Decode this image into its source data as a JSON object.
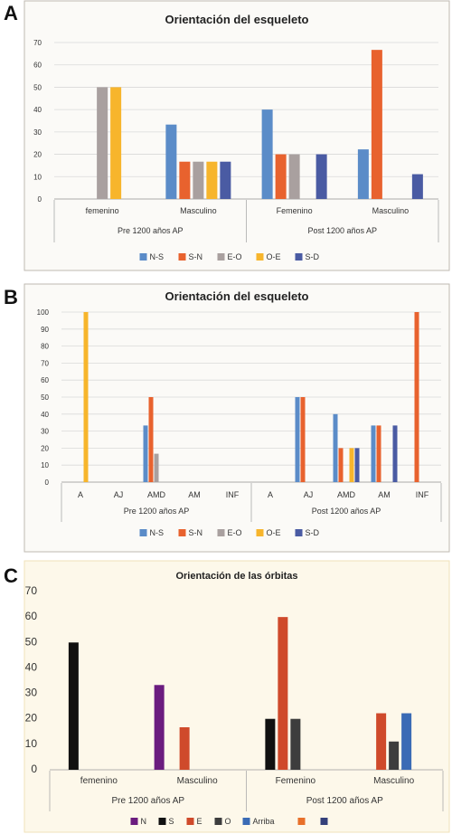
{
  "panels": [
    {
      "letter": "A"
    },
    {
      "letter": "B"
    },
    {
      "letter": "C"
    }
  ],
  "colors": {
    "N-S": "#5b8cc8",
    "S-N": "#e8622e",
    "E-O": "#a9a09f",
    "O-E": "#f7b52c",
    "S-D": "#4a5ba3",
    "N": "#6b1c7f",
    "S": "#111111",
    "E": "#cf4a2b",
    "O": "#3d3d3d",
    "Arriba": "#3a6bb5",
    "extra1": "#e8702a",
    "extra2": "#34407a"
  },
  "chart_data": [
    {
      "type": "bar",
      "title": "Orientación del esqueleto",
      "ylim": [
        0,
        70
      ],
      "yticks": [
        "0",
        "10",
        "20",
        "30",
        "40",
        "50",
        "60",
        "70"
      ],
      "categories": [
        "femenino",
        "Masculino",
        "Femenino",
        "Masculino"
      ],
      "groups": [
        "Pre 1200 años AP",
        "Post 1200 años AP"
      ],
      "series": [
        {
          "name": "N-S",
          "values": [
            0,
            33.3,
            40,
            22.2
          ]
        },
        {
          "name": "S-N",
          "values": [
            0,
            16.7,
            20,
            66.7
          ]
        },
        {
          "name": "E-O",
          "values": [
            50,
            16.7,
            20,
            0
          ]
        },
        {
          "name": "O-E",
          "values": [
            50,
            16.7,
            0,
            0
          ]
        },
        {
          "name": "S-D",
          "values": [
            0,
            16.7,
            20,
            11.1
          ]
        }
      ],
      "legend": "bottom"
    },
    {
      "type": "bar",
      "title": "Orientación del esqueleto",
      "ylim": [
        0,
        100
      ],
      "yticks": [
        "0",
        "10",
        "20",
        "30",
        "40",
        "50",
        "60",
        "70",
        "80",
        "90",
        "100"
      ],
      "categories": [
        "A",
        "AJ",
        "AMD",
        "AM",
        "INF",
        "A",
        "AJ",
        "AMD",
        "AM",
        "INF"
      ],
      "groups": [
        "Pre 1200 años AP",
        "Post 1200 años AP"
      ],
      "series": [
        {
          "name": "N-S",
          "values": [
            0,
            0,
            33.3,
            0,
            0,
            0,
            50,
            40,
            33.3,
            0
          ]
        },
        {
          "name": "S-N",
          "values": [
            0,
            0,
            50,
            0,
            0,
            0,
            50,
            20,
            33.3,
            100
          ]
        },
        {
          "name": "E-O",
          "values": [
            0,
            0,
            16.7,
            0,
            0,
            0,
            0,
            0,
            0,
            0
          ]
        },
        {
          "name": "O-E",
          "values": [
            100,
            0,
            0,
            0,
            0,
            0,
            0,
            20,
            0,
            0
          ]
        },
        {
          "name": "S-D",
          "values": [
            0,
            0,
            0,
            0,
            0,
            0,
            0,
            20,
            33.3,
            0
          ]
        }
      ],
      "legend": "bottom"
    },
    {
      "type": "bar",
      "title": "Orientación de las órbitas",
      "ylim": [
        0,
        70
      ],
      "yticks": [
        "0",
        "10",
        "20",
        "30",
        "40",
        "50",
        "60",
        "70"
      ],
      "categories": [
        "femenino",
        "Masculino",
        "Femenino",
        "Masculino"
      ],
      "groups": [
        "Pre 1200 años AP",
        "Post 1200 años AP"
      ],
      "series": [
        {
          "name": "N",
          "values": [
            0,
            33.3,
            0,
            0
          ]
        },
        {
          "name": "S",
          "values": [
            50,
            0,
            20,
            0
          ]
        },
        {
          "name": "E",
          "values": [
            0,
            16.7,
            60,
            22.2
          ]
        },
        {
          "name": "O",
          "values": [
            0,
            0,
            20,
            11.1
          ]
        },
        {
          "name": "Arriba",
          "values": [
            0,
            0,
            0,
            22.2
          ]
        },
        {
          "name": "",
          "values": [
            0,
            0,
            0,
            0
          ]
        },
        {
          "name": "",
          "values": [
            0,
            0,
            0,
            0
          ]
        }
      ],
      "legend": "bottom"
    }
  ]
}
